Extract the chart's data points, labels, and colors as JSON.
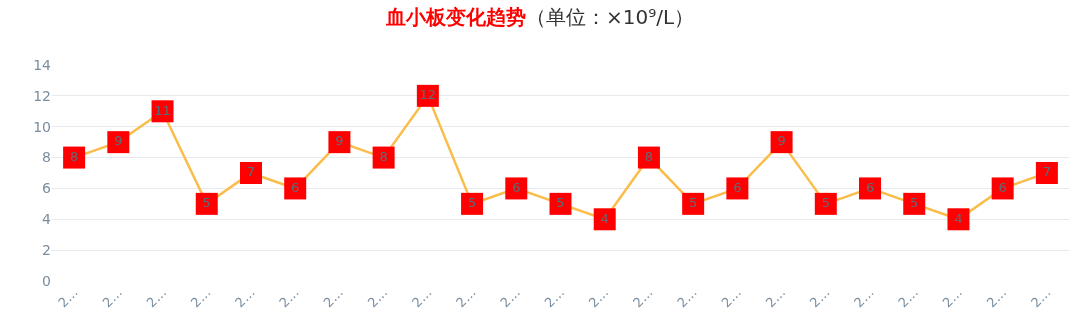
{
  "chart_data": {
    "type": "line",
    "title": "血小板变化趋势",
    "subtitle": "（单位：×10⁹/L）",
    "categories": [
      "2…",
      "2…",
      "2…",
      "2…",
      "2…",
      "2…",
      "2…",
      "2…",
      "2…",
      "2…",
      "2…",
      "2…",
      "2…",
      "2…",
      "2…",
      "2…",
      "2…",
      "2…",
      "2…",
      "2…",
      "2…",
      "2…",
      "2…"
    ],
    "series": [
      {
        "color": "#fbbd4a",
        "values": [
          8,
          9,
          11,
          5,
          7,
          6,
          9,
          8,
          12,
          5,
          6,
          5,
          4,
          8,
          5,
          6,
          9,
          5,
          6,
          5,
          4,
          6,
          7
        ]
      }
    ],
    "ylim": [
      0,
      14
    ],
    "yticks": [
      0,
      2,
      4,
      6,
      8,
      10,
      12,
      14
    ],
    "grid": "y",
    "marker": "square",
    "data_labels": true
  }
}
